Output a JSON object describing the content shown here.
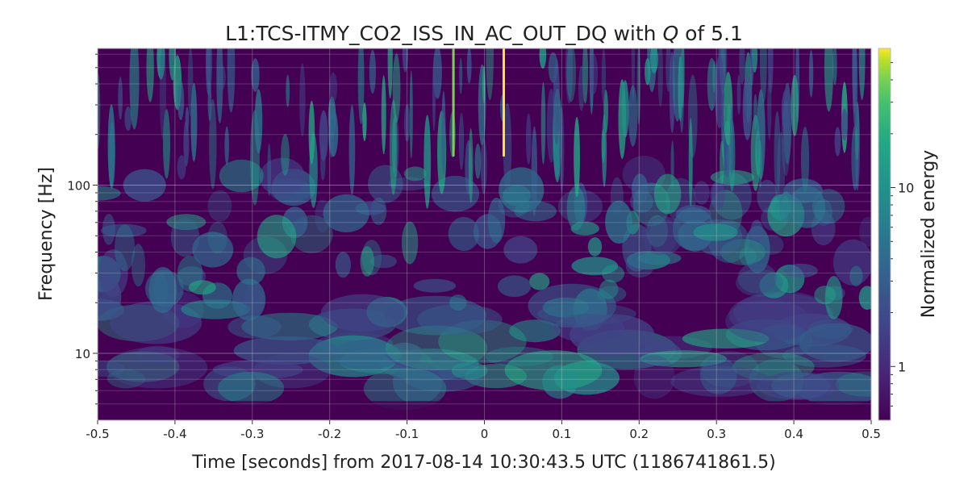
{
  "chart_data": {
    "type": "heatmap",
    "title_prefix": "L1:TCS-ITMY_CO2_ISS_IN_AC_OUT_DQ with ",
    "title_q": "Q",
    "title_suffix": " of 5.1",
    "xlabel": "Time [seconds] from 2017-08-14 10:30:43.5 UTC (1186741861.5)",
    "ylabel": "Frequency [Hz]",
    "colorbar_label": "Normalized energy",
    "x_range": [
      -0.5,
      0.5
    ],
    "y_range": [
      4,
      650
    ],
    "y_scale": "log",
    "colorbar_range": [
      0.5,
      60
    ],
    "colorbar_scale": "log",
    "colormap": "viridis",
    "grid": true,
    "x_ticks": [
      {
        "value": -0.5,
        "label": "-0.5"
      },
      {
        "value": -0.4,
        "label": "-0.4"
      },
      {
        "value": -0.3,
        "label": "-0.3"
      },
      {
        "value": -0.2,
        "label": "-0.2"
      },
      {
        "value": -0.1,
        "label": "-0.1"
      },
      {
        "value": 0,
        "label": "0"
      },
      {
        "value": 0.1,
        "label": "0.1"
      },
      {
        "value": 0.2,
        "label": "0.2"
      },
      {
        "value": 0.3,
        "label": "0.3"
      },
      {
        "value": 0.4,
        "label": "0.4"
      },
      {
        "value": 0.5,
        "label": "0.5"
      }
    ],
    "y_ticks": [
      {
        "value": 10,
        "label": "10"
      },
      {
        "value": 100,
        "label": "100"
      }
    ],
    "colorbar_ticks": [
      {
        "value": 1,
        "label": "1"
      },
      {
        "value": 10,
        "label": "10"
      }
    ],
    "features": [
      {
        "t": -0.04,
        "f_min": 150,
        "f_max": 650,
        "energy": 50
      },
      {
        "t": 0.025,
        "f_min": 150,
        "f_max": 650,
        "energy": 60
      }
    ]
  }
}
